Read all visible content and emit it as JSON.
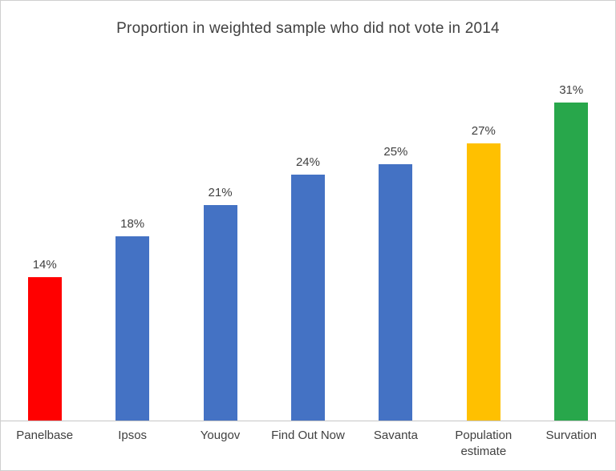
{
  "chart_data": {
    "type": "bar",
    "title": "Proportion in weighted sample who did not vote in 2014",
    "categories": [
      "Panelbase",
      "Ipsos",
      "Yougov",
      "Find Out Now",
      "Savanta",
      "Population estimate",
      "Survation"
    ],
    "values": [
      14,
      18,
      21,
      24,
      25,
      27,
      31
    ],
    "value_labels": [
      "14%",
      "18%",
      "21%",
      "24%",
      "25%",
      "27%",
      "31%"
    ],
    "bar_colors": [
      "#ff0000",
      "#4472c4",
      "#4472c4",
      "#4472c4",
      "#4472c4",
      "#ffc000",
      "#28a74b"
    ],
    "xlabel": "",
    "ylabel": "",
    "ylim": [
      0,
      33
    ],
    "grid": false,
    "legend": false,
    "axis_line_color": "#c6c6c6",
    "text_color": "#404040"
  }
}
